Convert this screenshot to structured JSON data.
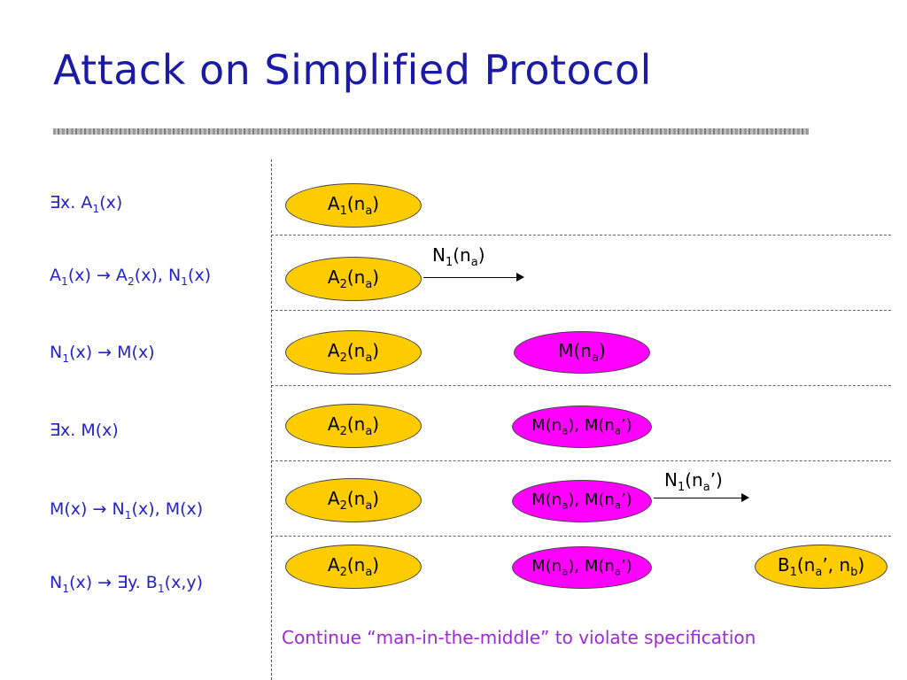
{
  "slide": {
    "title": "Attack on Simplified Protocol",
    "caption": "Continue “man-in-the-middle” to violate specification"
  },
  "colors": {
    "title": "#1a1aa6",
    "rules": "#2323c8",
    "caption": "#9b2ad6",
    "honest_node": "#ffcc00",
    "intruder_node": "#ff00ff"
  },
  "rules": [
    {
      "segments": [
        {
          "t": "∃x. A"
        },
        {
          "sub": "1"
        },
        {
          "t": "(x)"
        }
      ]
    },
    {
      "segments": [
        {
          "t": "A"
        },
        {
          "sub": "1"
        },
        {
          "t": "(x) → A"
        },
        {
          "sub": "2"
        },
        {
          "t": "(x), N"
        },
        {
          "sub": "1"
        },
        {
          "t": "(x)"
        }
      ]
    },
    {
      "segments": [
        {
          "t": "N"
        },
        {
          "sub": "1"
        },
        {
          "t": "(x) → M(x)"
        }
      ]
    },
    {
      "segments": [
        {
          "t": "∃x. M(x)"
        }
      ]
    },
    {
      "segments": [
        {
          "t": "M(x) → N"
        },
        {
          "sub": "1"
        },
        {
          "t": "(x), M(x)"
        }
      ]
    },
    {
      "segments": [
        {
          "t": "N"
        },
        {
          "sub": "1"
        },
        {
          "t": "(x) → ∃y. B"
        },
        {
          "sub": "1"
        },
        {
          "t": "(x,y)"
        }
      ]
    }
  ],
  "nodes": [
    {
      "kind": "honest",
      "segments": [
        {
          "t": "A"
        },
        {
          "sub": "1"
        },
        {
          "t": "(n"
        },
        {
          "sub": "a"
        },
        {
          "t": ")"
        }
      ]
    },
    {
      "kind": "honest",
      "segments": [
        {
          "t": "A"
        },
        {
          "sub": "2"
        },
        {
          "t": "(n"
        },
        {
          "sub": "a"
        },
        {
          "t": ")"
        }
      ]
    },
    {
      "kind": "honest",
      "segments": [
        {
          "t": "A"
        },
        {
          "sub": "2"
        },
        {
          "t": "(n"
        },
        {
          "sub": "a"
        },
        {
          "t": ")"
        }
      ]
    },
    {
      "kind": "intruder",
      "segments": [
        {
          "t": "M(n"
        },
        {
          "sub": "a"
        },
        {
          "t": ")"
        }
      ]
    },
    {
      "kind": "honest",
      "segments": [
        {
          "t": "A"
        },
        {
          "sub": "2"
        },
        {
          "t": "(n"
        },
        {
          "sub": "a"
        },
        {
          "t": ")"
        }
      ]
    },
    {
      "kind": "intruder",
      "segments": [
        {
          "t": "M(n"
        },
        {
          "sub": "a"
        },
        {
          "t": "), M(n"
        },
        {
          "sub": "a"
        },
        {
          "t": "’)"
        }
      ]
    },
    {
      "kind": "honest",
      "segments": [
        {
          "t": "A"
        },
        {
          "sub": "2"
        },
        {
          "t": "(n"
        },
        {
          "sub": "a"
        },
        {
          "t": ")"
        }
      ]
    },
    {
      "kind": "intruder",
      "segments": [
        {
          "t": "M(n"
        },
        {
          "sub": "a"
        },
        {
          "t": "), M(n"
        },
        {
          "sub": "a"
        },
        {
          "t": "’)"
        }
      ]
    },
    {
      "kind": "honest",
      "segments": [
        {
          "t": "A"
        },
        {
          "sub": "2"
        },
        {
          "t": "(n"
        },
        {
          "sub": "a"
        },
        {
          "t": ")"
        }
      ]
    },
    {
      "kind": "intruder",
      "segments": [
        {
          "t": "M(n"
        },
        {
          "sub": "a"
        },
        {
          "t": "), M(n"
        },
        {
          "sub": "a"
        },
        {
          "t": "’)"
        }
      ]
    },
    {
      "kind": "honest",
      "segments": [
        {
          "t": "B"
        },
        {
          "sub": "1"
        },
        {
          "t": "(n"
        },
        {
          "sub": "a"
        },
        {
          "t": "’, n"
        },
        {
          "sub": "b"
        },
        {
          "t": ")"
        }
      ]
    }
  ],
  "messages": [
    {
      "segments": [
        {
          "t": "N"
        },
        {
          "sub": "1"
        },
        {
          "t": "(n"
        },
        {
          "sub": "a"
        },
        {
          "t": ")"
        }
      ]
    },
    {
      "segments": [
        {
          "t": "N"
        },
        {
          "sub": "1"
        },
        {
          "t": "(n"
        },
        {
          "sub": "a"
        },
        {
          "t": "’)"
        }
      ]
    }
  ]
}
